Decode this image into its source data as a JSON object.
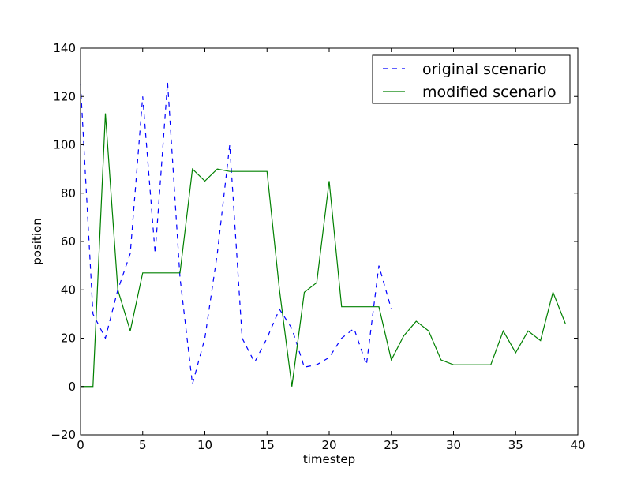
{
  "chart_data": {
    "type": "line",
    "title": "",
    "xlabel": "timestep",
    "ylabel": "position",
    "xlim": [
      0,
      40
    ],
    "ylim": [
      -20,
      140
    ],
    "xticks": [
      0,
      5,
      10,
      15,
      20,
      25,
      30,
      35,
      40
    ],
    "yticks": [
      -20,
      0,
      20,
      40,
      60,
      80,
      100,
      120,
      140
    ],
    "xtick_labels": [
      "0",
      "5",
      "10",
      "15",
      "20",
      "25",
      "30",
      "35",
      "40"
    ],
    "ytick_labels": [
      "−20",
      "0",
      "20",
      "40",
      "60",
      "80",
      "100",
      "120",
      "140"
    ],
    "grid": false,
    "legend_position": "top-right",
    "series": [
      {
        "name": "original scenario",
        "color": "#0000ff",
        "style": "dashed",
        "x": [
          0,
          1,
          2,
          3,
          4,
          5,
          6,
          7,
          8,
          9,
          10,
          11,
          12,
          13,
          14,
          15,
          16,
          17,
          18,
          19,
          20,
          21,
          22,
          23,
          24,
          25
        ],
        "y": [
          125,
          30,
          20,
          40,
          55,
          120,
          55,
          126,
          45,
          1,
          20,
          55,
          100,
          20,
          10,
          20,
          32,
          24,
          8,
          9,
          12,
          20,
          24,
          9,
          50,
          32
        ]
      },
      {
        "name": "modified scenario",
        "color": "#008000",
        "style": "solid",
        "x": [
          0,
          1,
          2,
          3,
          4,
          5,
          6,
          7,
          8,
          9,
          10,
          11,
          12,
          13,
          14,
          15,
          16,
          17,
          18,
          19,
          20,
          21,
          22,
          23,
          24,
          25,
          26,
          27,
          28,
          29,
          30,
          31,
          32,
          33,
          34,
          35,
          36,
          37,
          38,
          39
        ],
        "y": [
          0,
          0,
          113,
          40,
          23,
          47,
          47,
          47,
          47,
          90,
          85,
          90,
          89,
          89,
          89,
          89,
          40,
          0,
          39,
          43,
          85,
          33,
          33,
          33,
          33,
          11,
          21,
          27,
          23,
          11,
          9,
          9,
          9,
          9,
          23,
          14,
          23,
          19,
          39,
          26
        ]
      }
    ]
  }
}
